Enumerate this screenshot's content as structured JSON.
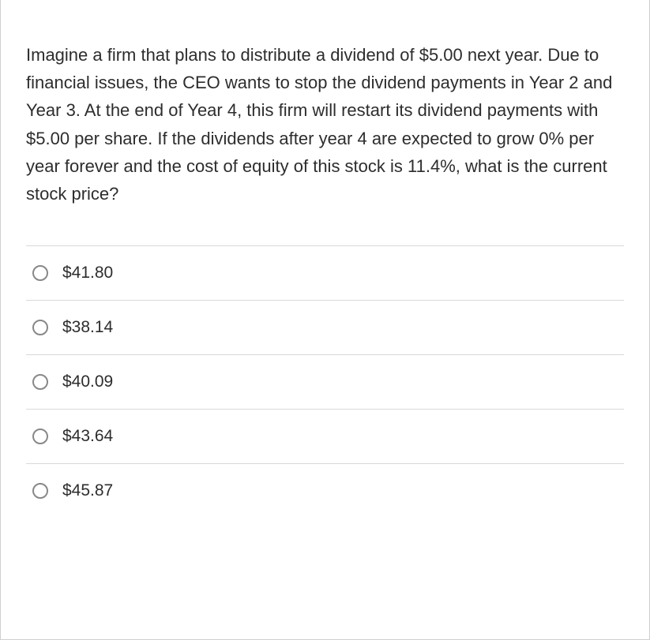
{
  "question": {
    "text": "Imagine a firm that plans to distribute a dividend of $5.00 next year. Due to financial issues, the CEO wants to stop the dividend payments in Year 2 and Year 3. At the end of Year 4, this firm will restart its dividend payments with $5.00 per share. If the dividends after year 4 are expected to grow 0% per year forever and the cost of equity of this stock is 11.4%, what is the current stock price?"
  },
  "options": [
    {
      "label": "$41.80"
    },
    {
      "label": "$38.14"
    },
    {
      "label": "$40.09"
    },
    {
      "label": "$43.64"
    },
    {
      "label": "$45.87"
    }
  ],
  "colors": {
    "text": "#2d2d2d",
    "border": "#d9d9d9",
    "radio_border": "#888888",
    "container_border": "#d0d0d0",
    "background": "#ffffff"
  },
  "typography": {
    "question_fontsize": 22,
    "option_fontsize": 21,
    "line_height": 1.6
  }
}
